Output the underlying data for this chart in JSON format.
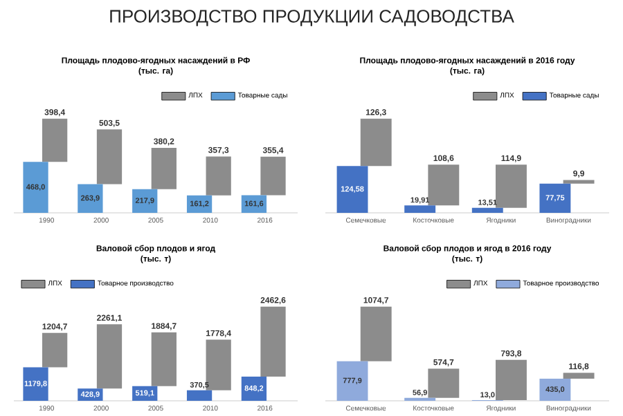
{
  "chart_data": [
    {
      "type": "bar",
      "stacked": true,
      "title": "Площадь плодово-ягодных насаждений в РФ",
      "subtitle": "(тыс. га)",
      "annotations": [
        "ПРОИЗВОДСТВО ПРОДУКЦИИ САДОВОДСТВА"
      ],
      "legend": "top right",
      "categories": [
        "1990",
        "2000",
        "2005",
        "2010",
        "2016"
      ],
      "series": [
        {
          "name": "Товарные сады",
          "color": "#5b9bd5",
          "values": [
            468.0,
            263.9,
            217.9,
            161.2,
            161.6
          ],
          "value_labels": [
            "468,0",
            "263,9",
            "217,9",
            "161,2",
            "161,6"
          ]
        },
        {
          "name": "ЛПХ",
          "color": "#8c8c8c",
          "values": [
            398.4,
            503.5,
            380.2,
            357.3,
            355.4
          ],
          "value_labels": [
            "398,4",
            "503,5",
            "380,2",
            "357,3",
            "355,4"
          ]
        }
      ]
    },
    {
      "type": "bar",
      "stacked": true,
      "title": "Площадь плодово-ягодных насаждений в 2016 году",
      "subtitle": "(тыс. га)",
      "legend": "top right",
      "categories": [
        "Семечковые",
        "Косточковые",
        "Ягодники",
        "Виноградники"
      ],
      "series": [
        {
          "name": "Товарные сады",
          "color": "#4472c4",
          "values": [
            124.58,
            19.91,
            13.51,
            77.75
          ],
          "value_labels": [
            "124,58",
            "19,91",
            "13,51",
            "77,75"
          ]
        },
        {
          "name": "ЛПХ",
          "color": "#8c8c8c",
          "values": [
            126.3,
            108.6,
            114.9,
            9.9
          ],
          "value_labels": [
            "126,3",
            "108,6",
            "114,9",
            "9,9"
          ]
        }
      ]
    },
    {
      "type": "bar",
      "stacked": true,
      "title": "Валовой сбор плодов и ягод",
      "subtitle": "(тыс. т)",
      "legend": "top left",
      "categories": [
        "1990",
        "2000",
        "2005",
        "2010",
        "2016"
      ],
      "series": [
        {
          "name": "Товарное производство",
          "color": "#4472c4",
          "values": [
            1179.8,
            428.9,
            519.1,
            370.5,
            848.2
          ],
          "value_labels": [
            "1179,8",
            "428,9",
            "519,1",
            "370,5",
            "848,2"
          ]
        },
        {
          "name": "ЛПХ",
          "color": "#8c8c8c",
          "values": [
            1204.7,
            2261.1,
            1884.7,
            1778.4,
            2462.6
          ],
          "value_labels": [
            "1204,7",
            "2261,1",
            "1884,7",
            "1778,4",
            "2462,6"
          ]
        }
      ]
    },
    {
      "type": "bar",
      "stacked": true,
      "title": "Валовой сбор плодов и ягод в 2016 году",
      "subtitle": "(тыс. т)",
      "legend": "top right",
      "categories": [
        "Семечковые",
        "Косточковые",
        "Ягодники",
        "Виноградники"
      ],
      "series": [
        {
          "name": "Товарное производство",
          "color": "#8faadc",
          "values": [
            777.9,
            56.9,
            13.0,
            435.0
          ],
          "value_labels": [
            "777,9",
            "56,9",
            "13,0",
            "435,0"
          ]
        },
        {
          "name": "ЛПХ",
          "color": "#8c8c8c",
          "values": [
            1074.7,
            574.7,
            793.8,
            116.8
          ],
          "value_labels": [
            "1074,7",
            "574,7",
            "793,8",
            "116,8"
          ]
        }
      ]
    }
  ]
}
